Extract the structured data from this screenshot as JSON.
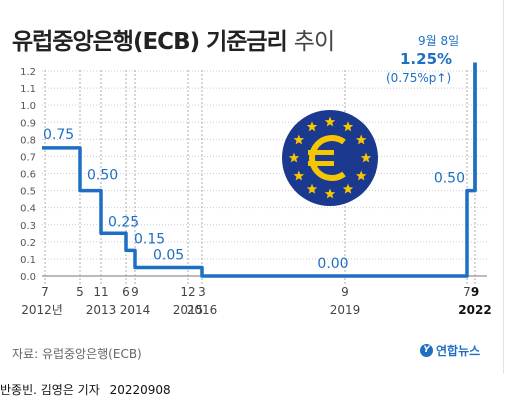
{
  "title": {
    "main": "유럽중앙은행(ECB) 기준금리",
    "suffix": "추이"
  },
  "annotation": {
    "date": "9월 8일",
    "value": "1.25%",
    "change": "(0.75%p↑)"
  },
  "source": "자료: 유럽중앙은행(ECB)",
  "logo": {
    "mark": "Y",
    "text": "연합뉴스"
  },
  "credit": {
    "author": "반종빈. 김영은 기자",
    "date": "20220908"
  },
  "colors": {
    "line": "#1e6fc4",
    "label": "#1e6fc4",
    "ecb_badge": "#1b3a8f",
    "ecb_stars": "#f6c700",
    "grid": "#cccccc",
    "vline": "#999999"
  },
  "icons": {
    "ecb_logo": "euro-sign-with-star-ring-icon"
  },
  "chart_data": {
    "type": "line",
    "step": true,
    "title": "유럽중앙은행(ECB) 기준금리 추이",
    "xlabel": "",
    "ylabel": "",
    "ylim": [
      0,
      1.25
    ],
    "yticks": [
      "1.2",
      "1.1",
      "1.0",
      "0.9",
      "0.8",
      "0.7",
      "0.6",
      "0.5",
      "0.4",
      "0.3",
      "0.2",
      "0.1",
      "0.0"
    ],
    "series": [
      {
        "x": [
          "2012-07",
          "2013-05",
          "2013-11",
          "2014-06",
          "2014-09",
          "2015-12",
          "2016-03",
          "2019-09",
          "2022-07",
          "2022-09"
        ],
        "values": [
          0.75,
          0.5,
          0.25,
          0.15,
          0.05,
          0.05,
          0.0,
          0.0,
          0.5,
          1.25
        ]
      }
    ],
    "data_labels": [
      {
        "text": "0.75",
        "x": "2012-07",
        "y": 0.75
      },
      {
        "text": "0.50",
        "x": "2013-05",
        "y": 0.5
      },
      {
        "text": "0.25",
        "x": "2013-11",
        "y": 0.25
      },
      {
        "text": "0.15",
        "x": "2014-06",
        "y": 0.15
      },
      {
        "text": "0.05",
        "x": "2014-09",
        "y": 0.05
      },
      {
        "text": "0.00",
        "x": "2019-09",
        "y": 0.0
      },
      {
        "text": "0.50",
        "x": "2022-07",
        "y": 0.5
      }
    ],
    "x_ticks": [
      {
        "month": "7",
        "year": "2012년",
        "x": "2012-07"
      },
      {
        "month": "5",
        "year": "",
        "x": "2013-05"
      },
      {
        "month": "11",
        "year": "2013",
        "x": "2013-11"
      },
      {
        "month": "6",
        "year": "",
        "x": "2014-06"
      },
      {
        "month": "9",
        "year": "2014",
        "x": "2014-09"
      },
      {
        "month": "12",
        "year": "2015",
        "x": "2015-12"
      },
      {
        "month": "3",
        "year": "2016",
        "x": "2016-03"
      },
      {
        "month": "9",
        "year": "2019",
        "x": "2019-09"
      },
      {
        "month": "7",
        "year": "",
        "x": "2022-07"
      },
      {
        "month": "9",
        "year": "2022",
        "x": "2022-09"
      }
    ],
    "grid": true
  }
}
